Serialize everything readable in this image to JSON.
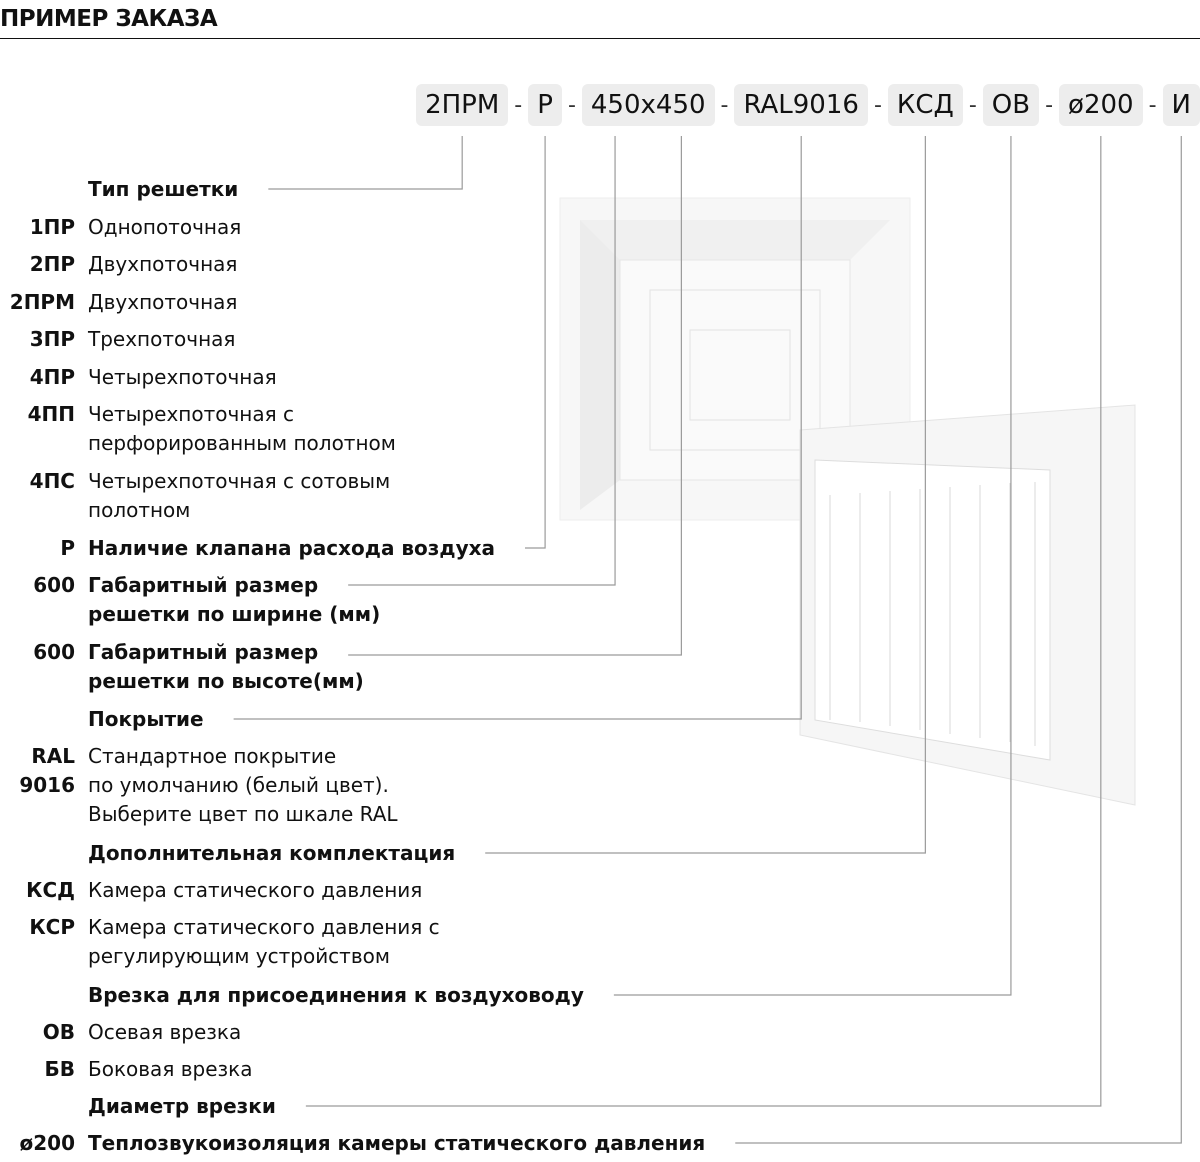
{
  "header": {
    "title": "ПРИМЕР ЗАКАЗА"
  },
  "order_code": {
    "separator": "-",
    "parts": [
      "2ПРМ",
      "Р",
      "450x450",
      "RAL9016",
      "КСД",
      "ОВ",
      "ø200",
      "И"
    ]
  },
  "items": [
    {
      "text": [
        "Тип решетки"
      ]
    },
    {
      "code": [
        "1ПР"
      ],
      "text": [
        "Однопоточная"
      ]
    },
    {
      "code": [
        "2ПР"
      ],
      "text": [
        "Двухпоточная"
      ]
    },
    {
      "code": [
        "2ПРМ"
      ],
      "text": [
        "Двухпоточная"
      ]
    },
    {
      "code": [
        "3ПР"
      ],
      "text": [
        "Трехпоточная"
      ]
    },
    {
      "code": [
        "4ПР"
      ],
      "text": [
        "Четырехпоточная"
      ]
    },
    {
      "code": [
        "4ПП"
      ],
      "text": [
        "Четырехпоточная с",
        "перфорированным полотном"
      ]
    },
    {
      "code": [
        "4ПС"
      ],
      "text": [
        "Четырехпоточная с сотовым",
        "полотном"
      ]
    },
    {
      "code": [
        "Р"
      ],
      "text": [
        "Наличие клапана расхода воздуха"
      ]
    },
    {
      "code": [
        "600"
      ],
      "text": [
        "Габаритный размер",
        "решетки по ширине (мм)"
      ]
    },
    {
      "code": [
        "600"
      ],
      "text": [
        "Габаритный размер",
        "решетки по высоте(мм)"
      ]
    },
    {
      "text": [
        "Покрытие"
      ]
    },
    {
      "code": [
        "RAL",
        "9016"
      ],
      "text": [
        "Стандартное покрытие",
        "по умолчанию (белый цвет).",
        "Выберите цвет по шкале RAL"
      ]
    },
    {
      "text": [
        "Дополнительная комплектация"
      ]
    },
    {
      "code": [
        "КСД"
      ],
      "text": [
        "Камера статического давления"
      ]
    },
    {
      "code": [
        "КСР"
      ],
      "text": [
        "Камера статического давления с",
        "регулирующим устройством"
      ]
    },
    {
      "text": [
        "Врезка для присоединения к воздуховоду"
      ]
    },
    {
      "code": [
        "ОВ"
      ],
      "text": [
        "Осевая врезка"
      ]
    },
    {
      "code": [
        "БВ"
      ],
      "text": [
        "Боковая врезка"
      ]
    },
    {
      "text": [
        "Диаметр врезки"
      ]
    },
    {
      "code": [
        "ø200"
      ],
      "text": [
        "Теплозвукоизоляция камеры статического давления"
      ]
    }
  ]
}
